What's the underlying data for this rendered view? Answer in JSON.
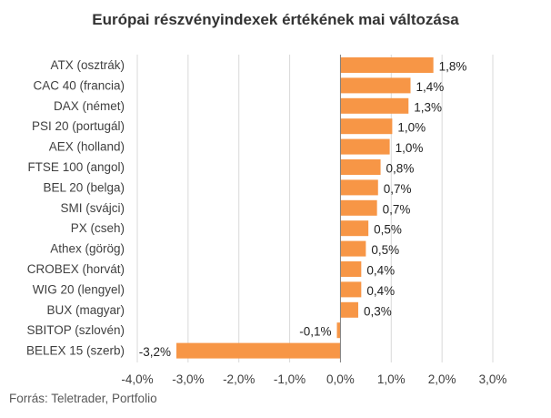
{
  "chart_data": {
    "type": "bar",
    "orientation": "horizontal",
    "title": "Európai részvényindexek értékének mai változása",
    "source": "Forrás: Teletrader, Portfolio",
    "categories": [
      "ATX (osztrák)",
      "CAC 40 (francia)",
      "DAX (német)",
      "PSI 20 (portugál)",
      "AEX (holland)",
      "FTSE 100 (angol)",
      "BEL 20 (belga)",
      "SMI (svájci)",
      "PX (cseh)",
      "Athex (görög)",
      "CROBEX (horvát)",
      "WIG 20 (lengyel)",
      "BUX (magyar)",
      "SBITOP (szlovén)",
      "BELEX 15 (szerb)"
    ],
    "values": [
      1.83,
      1.38,
      1.34,
      1.02,
      0.97,
      0.79,
      0.74,
      0.72,
      0.55,
      0.5,
      0.41,
      0.41,
      0.35,
      -0.07,
      -3.23
    ],
    "value_labels": [
      "1,8%",
      "1,4%",
      "1,3%",
      "1,0%",
      "1,0%",
      "0,8%",
      "0,7%",
      "0,7%",
      "0,5%",
      "0,5%",
      "0,4%",
      "0,4%",
      "0,3%",
      "-0,1%",
      "-3,2%"
    ],
    "xlim": [
      -4.0,
      3.0
    ],
    "ticks": [
      -4.0,
      -3.0,
      -2.0,
      -1.0,
      0.0,
      1.0,
      2.0,
      3.0
    ],
    "tick_labels": [
      "-4,0%",
      "-3,0%",
      "-2,0%",
      "-1,0%",
      "0,0%",
      "1,0%",
      "2,0%",
      "3,0%"
    ],
    "bar_color": "#F79646",
    "grid": true,
    "legend": "none"
  }
}
